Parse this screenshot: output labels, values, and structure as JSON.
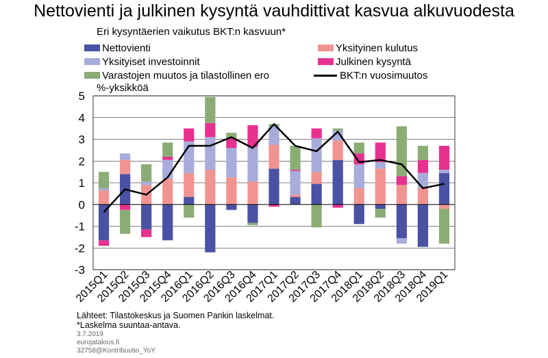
{
  "chart_data": {
    "type": "bar",
    "title": "Nettovienti ja julkinen kysyntä vauhdittivat kasvua alkuvuodesta",
    "subtitle": "Eri kysyntäerien vaikutus BKT:n kasvuun*",
    "ylabel": "%-yksikköä",
    "ylim": [
      -3,
      5
    ],
    "yticks": [
      -3,
      -2,
      -1,
      0,
      1,
      2,
      3,
      4,
      5
    ],
    "grid": true,
    "stacked": true,
    "categories": [
      "2015Q1",
      "2015Q2",
      "2015Q3",
      "2015Q4",
      "2016Q1",
      "2016Q2",
      "2016Q3",
      "2016Q4",
      "2017Q1",
      "2017Q2",
      "2017Q3",
      "2017Q4",
      "2018Q1",
      "2018Q2",
      "2018Q3",
      "2018Q4",
      "2019Q1"
    ],
    "series": [
      {
        "name": "Nettovienti",
        "color": "#4B52A3",
        "values": [
          -1.65,
          1.4,
          -1.15,
          -1.65,
          0.35,
          -2.2,
          -0.25,
          -0.85,
          1.65,
          0.35,
          0.95,
          2.05,
          -0.9,
          -0.2,
          -1.55,
          -1.95,
          1.45
        ]
      },
      {
        "name": "Yksityinen kulutus",
        "color": "#F19491",
        "values": [
          0.65,
          0.65,
          0.9,
          1.2,
          1.1,
          1.6,
          1.25,
          1.05,
          1.1,
          0.1,
          0.55,
          0.9,
          0.75,
          1.65,
          0.9,
          0.75,
          -0.2
        ]
      },
      {
        "name": "Yksityiset investoinnit",
        "color": "#A8ACDA",
        "values": [
          0.1,
          0.3,
          0.15,
          0.85,
          1.45,
          1.5,
          1.35,
          1.6,
          0.85,
          1.1,
          1.55,
          0.45,
          1.1,
          0.3,
          -0.25,
          0.7,
          0.15
        ]
      },
      {
        "name": "Julkinen kysyntä",
        "color": "#E7318F",
        "values": [
          -0.25,
          -0.25,
          -0.35,
          0.15,
          0.6,
          0.65,
          0.45,
          1.0,
          -0.1,
          0.05,
          0.45,
          -0.15,
          0.5,
          0.9,
          0.4,
          0.6,
          1.1
        ]
      },
      {
        "name": "Varastojen muutos ja tilastollinen ero",
        "color": "#8CAC76",
        "values": [
          0.75,
          -1.1,
          0.8,
          0.65,
          -0.6,
          1.2,
          0.25,
          -0.1,
          0.1,
          1.1,
          -1.05,
          0.1,
          0.5,
          -0.4,
          2.3,
          0.65,
          -1.6
        ]
      }
    ],
    "line": {
      "name": "BKT:n vuosimuutos",
      "color": "#000000",
      "values": [
        -0.35,
        0.7,
        0.45,
        1.25,
        2.7,
        2.7,
        3.1,
        2.6,
        3.7,
        2.7,
        2.45,
        3.35,
        1.95,
        2.05,
        1.85,
        0.75,
        0.95
      ]
    },
    "legend_placement": "top"
  },
  "notes": {
    "line1": "Lähteet: Tilastokeskus ja Suomen Pankin laskelmat.",
    "line2": "*Laskelma suuntaa-antava."
  },
  "meta": {
    "date": "3.7.2019",
    "site": "eurojatalous.fi",
    "code": "32758@Kontribuutio_YoY"
  }
}
